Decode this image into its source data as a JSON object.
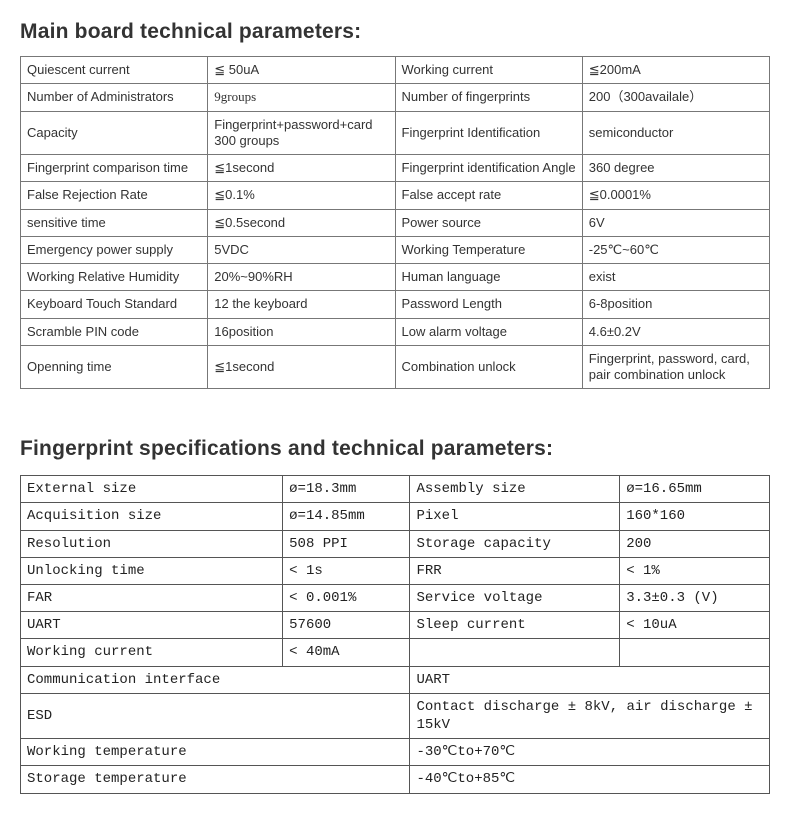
{
  "section1": {
    "title": "Main board technical parameters:",
    "rows": [
      {
        "a": "Quiescent current",
        "b": "≦ 50uA",
        "c": "Working current",
        "d": "≦200mA"
      },
      {
        "a": "Number of Administrators",
        "b": "9groups",
        "c": "Number of fingerprints",
        "d": "200（300availale）"
      },
      {
        "a": "Capacity",
        "b": "Fingerprint+password+card 300 groups",
        "c": "Fingerprint Identification",
        "d": "semiconductor"
      },
      {
        "a": "Fingerprint comparison time",
        "b": "≦1second",
        "c": "Fingerprint identification Angle",
        "d": "360 degree"
      },
      {
        "a": "False Rejection Rate",
        "b": "≦0.1%",
        "c": "False accept rate",
        "d": "≦0.0001%"
      },
      {
        "a": "sensitive time",
        "b": "≦0.5second",
        "c": "Power source",
        "d": "6V"
      },
      {
        "a": "Emergency power supply",
        "b": "5VDC",
        "c": "Working Temperature",
        "d": "-25℃~60℃"
      },
      {
        "a": "Working Relative Humidity",
        "b": "20%~90%RH",
        "c": "Human language",
        "d": "exist"
      },
      {
        "a": "Keyboard Touch Standard",
        "b": "12 the keyboard",
        "c": "Password Length",
        "d": "6-8position"
      },
      {
        "a": "Scramble PIN code",
        "b": "16position",
        "c": "Low alarm voltage",
        "d": "4.6±0.2V"
      },
      {
        "a": "Openning time",
        "b": "≦1second",
        "c": "Combination unlock",
        "d": "Fingerprint, password, card, pair combination unlock"
      }
    ]
  },
  "section2": {
    "title": "Fingerprint specifications and technical parameters:",
    "rows4": [
      {
        "a": "External size",
        "b": "ø=18.3mm",
        "c": "Assembly size",
        "d": "ø=16.65mm"
      },
      {
        "a": "Acquisition size",
        "b": "ø=14.85mm",
        "c": "Pixel",
        "d": "160*160"
      },
      {
        "a": "Resolution",
        "b": "508 PPI",
        "c": "Storage capacity",
        "d": "200"
      },
      {
        "a": "Unlocking time",
        "b": "< 1s",
        "c": "FRR",
        "d": "< 1%"
      },
      {
        "a": "FAR",
        "b": "< 0.001%",
        "c": "Service voltage",
        "d": "3.3±0.3 (V)"
      },
      {
        "a": "UART",
        "b": "57600",
        "c": "Sleep current",
        "d": "< 10uA"
      },
      {
        "a": "Working current",
        "b": "< 40mA",
        "c": "",
        "d": ""
      }
    ],
    "rows2": [
      {
        "a": "Communication interface",
        "b": "UART"
      },
      {
        "a": "ESD",
        "b": "Contact discharge ± 8kV, air discharge ± 15kV"
      },
      {
        "a": "Working temperature",
        "b": "-30℃to+70℃"
      },
      {
        "a": "Storage temperature",
        "b": "-40℃to+85℃"
      }
    ]
  },
  "style": {
    "background": "#ffffff",
    "text_color": "#333333",
    "border_color_first": "#777777",
    "border_color_second": "#555555",
    "heading_fontsize": 21,
    "table1_fontsize": 13,
    "table2_fontsize": 14,
    "table2_font_family": "monospace"
  }
}
